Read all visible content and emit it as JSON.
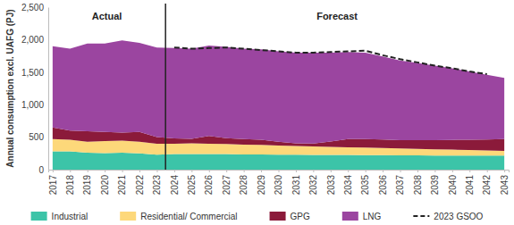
{
  "chart_data": {
    "type": "area",
    "stacked": true,
    "grid": false,
    "legend": "bottom",
    "y_label": "Annual consumption excl. UAFG (PJ)",
    "annotations": [
      {
        "text": "Actual"
      },
      {
        "text": "Forecast"
      }
    ],
    "categories": [
      "2017",
      "2018",
      "2019",
      "2020",
      "2021",
      "2022",
      "2023",
      "2024",
      "2025",
      "2026",
      "2027",
      "2028",
      "2029",
      "2030",
      "2031",
      "2032",
      "2033",
      "2034",
      "2035",
      "2036",
      "2037",
      "2038",
      "2039",
      "2040",
      "2041",
      "2042",
      "2043"
    ],
    "ylim": [
      0,
      2500
    ],
    "yticks": [
      0,
      500,
      {
        "value": 1000,
        "label": "1,000"
      },
      {
        "value": 1500,
        "label": "1,500"
      },
      {
        "value": 2000,
        "label": "2,000"
      },
      {
        "value": 2500,
        "label": "2,500"
      }
    ],
    "series": [
      {
        "name": "Industrial",
        "color": "#3cc4a8",
        "type": "area",
        "values": [
          280,
          280,
          260,
          255,
          260,
          250,
          230,
          240,
          240,
          240,
          240,
          235,
          235,
          230,
          230,
          228,
          226,
          225,
          224,
          222,
          220,
          220,
          218,
          218,
          216,
          215,
          215
        ]
      },
      {
        "name": "Residential/ Commercial",
        "color": "#fdd87a",
        "type": "area",
        "values": [
          190,
          180,
          170,
          185,
          185,
          180,
          170,
          160,
          165,
          160,
          155,
          150,
          145,
          140,
          135,
          130,
          125,
          120,
          115,
          110,
          105,
          100,
          95,
          90,
          85,
          80,
          75
        ]
      },
      {
        "name": "GPG",
        "color": "#8b1a3a",
        "type": "area",
        "values": [
          180,
          140,
          160,
          140,
          125,
          150,
          100,
          80,
          70,
          120,
          90,
          85,
          80,
          60,
          40,
          45,
          80,
          125,
          130,
          130,
          130,
          135,
          140,
          150,
          160,
          170,
          180
        ]
      },
      {
        "name": "LNG",
        "color": "#9b45a0",
        "type": "area",
        "values": [
          1250,
          1260,
          1350,
          1360,
          1420,
          1370,
          1380,
          1390,
          1385,
          1390,
          1405,
          1390,
          1390,
          1390,
          1395,
          1397,
          1369,
          1340,
          1331,
          1278,
          1225,
          1185,
          1147,
          1102,
          1049,
          995,
          940
        ]
      },
      {
        "name": "2023 GSOO",
        "color": "#222222",
        "type": "line",
        "line_style": "dashed",
        "values": [
          null,
          null,
          null,
          null,
          null,
          null,
          null,
          1880,
          1860,
          1870,
          1880,
          1860,
          1840,
          1820,
          1800,
          1800,
          1810,
          1820,
          1830,
          1760,
          1700,
          1650,
          1600,
          1560,
          1510,
          1470,
          null
        ]
      }
    ]
  }
}
